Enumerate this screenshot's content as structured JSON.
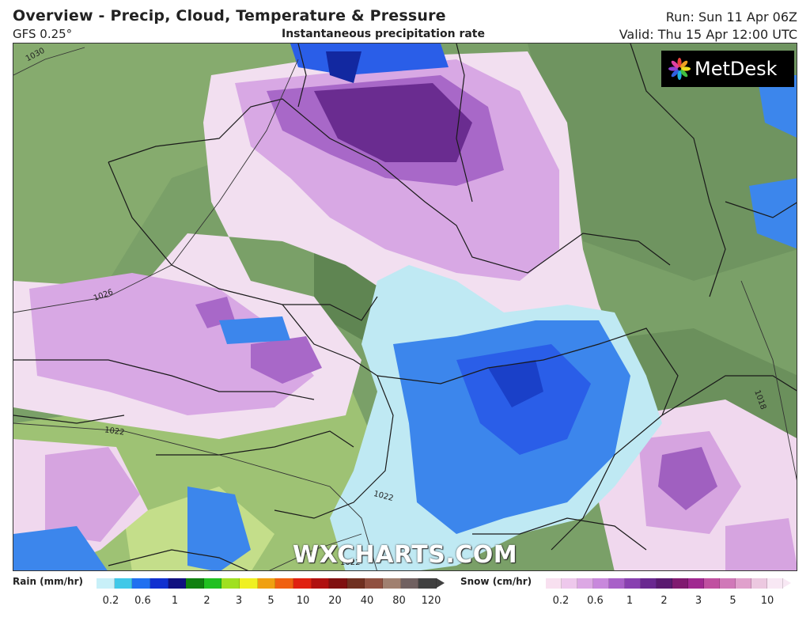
{
  "header": {
    "title": "Overview - Precip, Cloud, Temperature & Pressure",
    "model": "GFS 0.25°",
    "subtitle": "Instantaneous precipitation rate",
    "run": "Run: Sun 11 Apr 06Z",
    "valid": "Valid: Thu 15 Apr 12:00 UTC"
  },
  "logo": {
    "text": "MetDesk",
    "icon": "metdesk-flower-icon"
  },
  "watermark": "WXCHARTS.COM",
  "isobars": [
    "1030",
    "1026",
    "1022",
    "1022",
    "1022",
    "1018"
  ],
  "legend": {
    "rain_label": "Rain (mm/hr)",
    "snow_label": "Snow (cm/hr)",
    "rain_ticks": [
      "0.2",
      "0.6",
      "1",
      "2",
      "3",
      "5",
      "10",
      "20",
      "40",
      "80",
      "120"
    ],
    "snow_ticks": [
      "0.2",
      "0.6",
      "1",
      "2",
      "3",
      "5",
      "10"
    ],
    "rain_colors": [
      "#c8f0f8",
      "#40c8e8",
      "#2070f0",
      "#1030d0",
      "#101080",
      "#108010",
      "#20c020",
      "#a0e020",
      "#f0f020",
      "#f0a010",
      "#f06010",
      "#e02010",
      "#b01010",
      "#801010",
      "#703020",
      "#905040",
      "#a08070",
      "#706060",
      "#404040"
    ],
    "snow_colors": [
      "#f8e0f0",
      "#eec8ec",
      "#dca8e4",
      "#c888dc",
      "#a860c8",
      "#8840b0",
      "#6a2890",
      "#5a1a70",
      "#801a70",
      "#a02890",
      "#c050a0",
      "#d078b8",
      "#e0a0cc",
      "#ecc8e0",
      "#f8e8f4"
    ]
  }
}
